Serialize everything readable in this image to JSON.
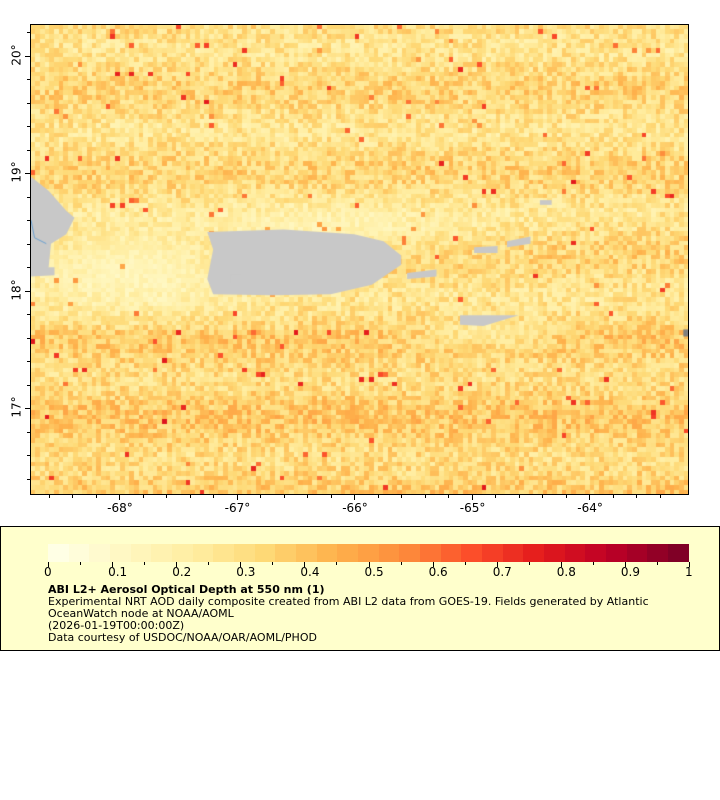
{
  "map": {
    "variable": "ABI L2+ Aerosol Optical Depth at 550 nm",
    "lon_range": [
      -68.75,
      -63.16
    ],
    "lat_range": [
      16.27,
      20.26
    ],
    "lon_ticks": [
      {
        "value": -68,
        "label": "-68°"
      },
      {
        "value": -67,
        "label": "-67°"
      },
      {
        "value": -66,
        "label": "-66°"
      },
      {
        "value": -65,
        "label": "-65°"
      },
      {
        "value": -64,
        "label": "-64°"
      }
    ],
    "lat_ticks": [
      {
        "value": 20,
        "label": "20°"
      },
      {
        "value": 19,
        "label": "19°"
      },
      {
        "value": 18,
        "label": "18°"
      },
      {
        "value": 17,
        "label": "17°"
      }
    ],
    "land_color": "#c8c8c8",
    "nodata_color": "#808080"
  },
  "legend": {
    "range": [
      0,
      1
    ],
    "tick_labels": [
      "0",
      "0.1",
      "0.2",
      "0.3",
      "0.4",
      "0.5",
      "0.6",
      "0.7",
      "0.8",
      "0.9",
      "1"
    ],
    "palette": [
      "#ffffe5",
      "#fff7c0",
      "#ffeda0",
      "#fed976",
      "#feb24c",
      "#fd8d3c",
      "#fc4e2a",
      "#e31a1c",
      "#bd0026",
      "#800026"
    ],
    "title": "ABI L2+ Aerosol Optical Depth at 550 nm (1)",
    "line1": "Experimental NRT AOD daily composite created from ABI L2 data from GOES-19. Fields generated by Atlantic",
    "line2": "OceanWatch node at NOAA/AOML",
    "line3": "(2026-01-19T00:00:00Z)",
    "line4": "Data courtesy of USDOC/NOAA/OAR/AOML/PHOD"
  }
}
